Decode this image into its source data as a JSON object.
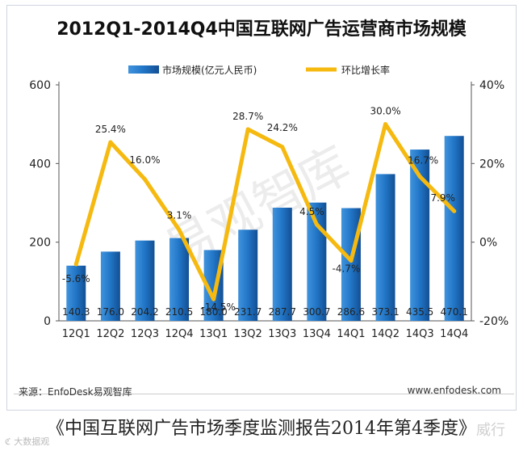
{
  "chart_data": {
    "type": "bar",
    "title": "2012Q1-2014Q4中国互联网广告运营商市场规模",
    "categories": [
      "12Q1",
      "12Q2",
      "12Q3",
      "12Q4",
      "13Q1",
      "13Q2",
      "13Q3",
      "13Q4",
      "14Q1",
      "14Q2",
      "14Q3",
      "14Q4"
    ],
    "series": [
      {
        "name": "市场规模(亿元人民币)",
        "type": "bar",
        "axis": "left",
        "values": [
          140.3,
          176.0,
          204.2,
          210.5,
          180.0,
          231.7,
          287.7,
          300.7,
          286.6,
          373.1,
          435.5,
          470.1
        ],
        "labels": [
          "140.3",
          "176.0",
          "204.2",
          "210.5",
          "180.0",
          "231.7",
          "287.7",
          "300.7",
          "286.6",
          "373.1",
          "435.5",
          "470.1"
        ],
        "color": "#1f6fbf"
      },
      {
        "name": "环比增长率",
        "type": "line",
        "axis": "right",
        "values": [
          -5.6,
          25.4,
          16.0,
          3.1,
          -14.5,
          28.7,
          24.2,
          4.5,
          -4.7,
          30.0,
          16.7,
          7.9
        ],
        "labels": [
          "-5.6%",
          "25.4%",
          "16.0%",
          "3.1%",
          "-14.5%",
          "28.7%",
          "24.2%",
          "4.5%",
          "-4.7%",
          "30.0%",
          "16.7%",
          "7.9%"
        ],
        "color": "#f5b90f"
      }
    ],
    "left_axis": {
      "ylim": [
        0,
        600
      ],
      "ticks": [
        "0",
        "200",
        "400",
        "600"
      ]
    },
    "right_axis": {
      "ylim": [
        -20,
        40
      ],
      "ticks": [
        "-20%",
        "0%",
        "20%",
        "40%"
      ]
    },
    "legend_position": "top",
    "grid": false
  },
  "watermark": "易观智库",
  "source": "来源：EnfoDesk易观智库",
  "website": "www.enfodesk.com",
  "caption": "《中国互联网广告市场季度监测报告2014年第4季度》",
  "corner_watermark": "大数据观",
  "corner_watermark2": "威行"
}
